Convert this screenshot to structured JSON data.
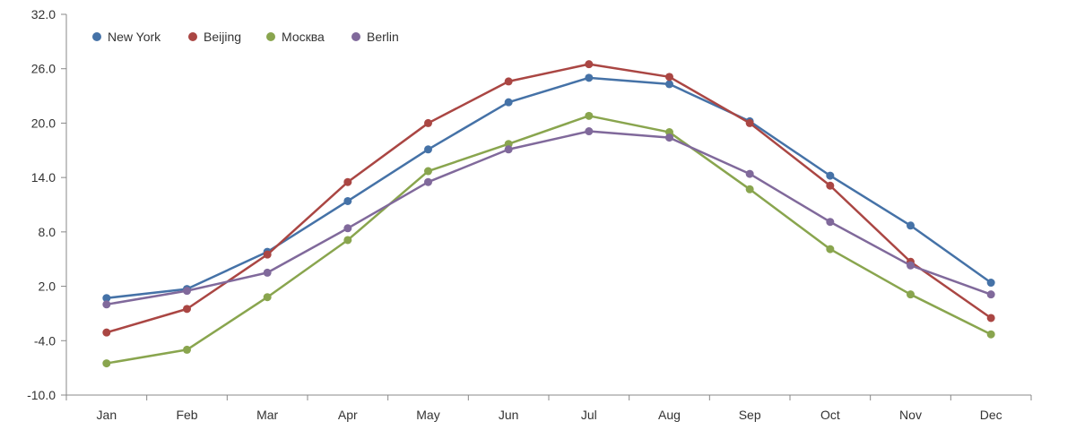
{
  "chart_data": {
    "type": "line",
    "categories": [
      "Jan",
      "Feb",
      "Mar",
      "Apr",
      "May",
      "Jun",
      "Jul",
      "Aug",
      "Sep",
      "Oct",
      "Nov",
      "Dec"
    ],
    "ylim": [
      -10,
      32
    ],
    "yticks": [
      -10.0,
      -4.0,
      2.0,
      8.0,
      14.0,
      20.0,
      26.0,
      32.0
    ],
    "ytick_labels": [
      "-10.0",
      "-4.0",
      "2.0",
      "8.0",
      "14.0",
      "20.0",
      "26.0",
      "32.0"
    ],
    "grid": false,
    "legend_position": "top-left",
    "series": [
      {
        "name": "New York",
        "color": "#4572a7",
        "values": [
          0.7,
          1.7,
          5.8,
          11.4,
          17.1,
          22.3,
          25.0,
          24.3,
          20.2,
          14.2,
          8.7,
          2.4
        ]
      },
      {
        "name": "Beijing",
        "color": "#aa4643",
        "values": [
          -3.1,
          -0.5,
          5.5,
          13.5,
          20.0,
          24.6,
          26.5,
          25.1,
          20.0,
          13.1,
          4.7,
          -1.5
        ]
      },
      {
        "name": "Москва",
        "color": "#89a54e",
        "values": [
          -6.5,
          -5.0,
          0.8,
          7.1,
          14.7,
          17.7,
          20.8,
          19.0,
          12.7,
          6.1,
          1.1,
          -3.3
        ]
      },
      {
        "name": "Berlin",
        "color": "#80699b",
        "values": [
          0.0,
          1.5,
          3.5,
          8.4,
          13.5,
          17.1,
          19.1,
          18.4,
          14.4,
          9.1,
          4.3,
          1.1
        ]
      }
    ]
  }
}
